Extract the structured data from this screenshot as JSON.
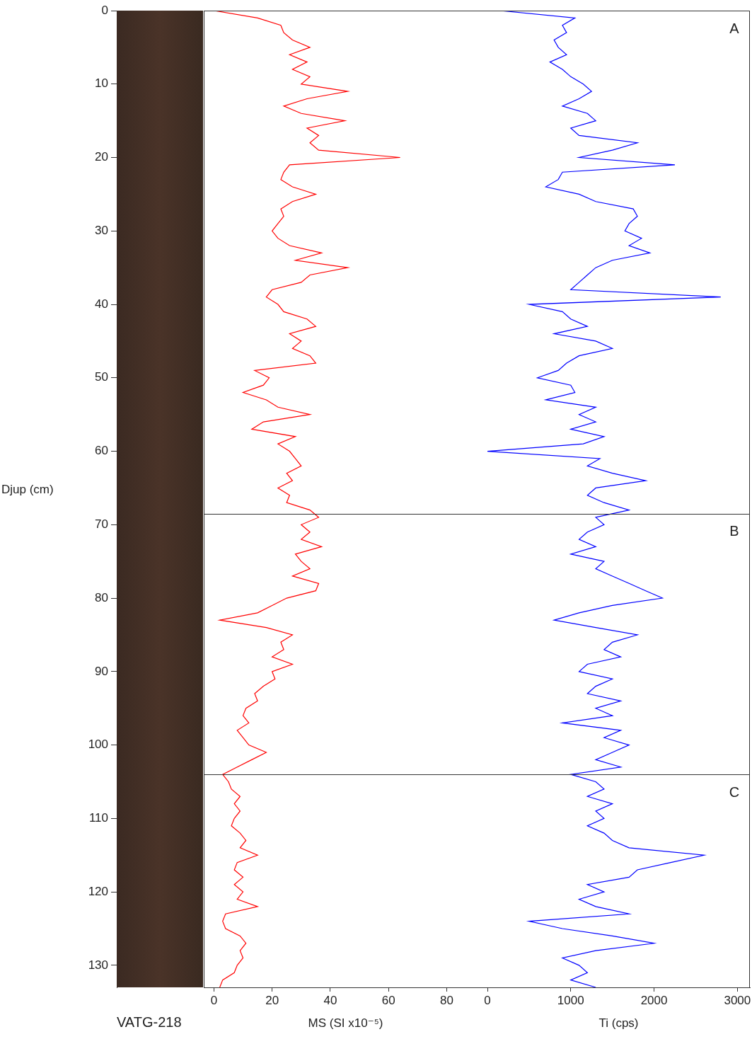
{
  "chart_data": {
    "type": "line",
    "title": "VATG-218",
    "y_label": "Djup (cm)",
    "ylim": [
      0,
      133
    ],
    "yticks": [
      0,
      10,
      20,
      30,
      40,
      50,
      60,
      70,
      80,
      90,
      100,
      110,
      120,
      130
    ],
    "grid": false,
    "depth": [
      0,
      1,
      2,
      3,
      4,
      5,
      6,
      7,
      8,
      9,
      10,
      11,
      12,
      13,
      14,
      15,
      16,
      17,
      18,
      19,
      20,
      21,
      22,
      23,
      24,
      25,
      26,
      27,
      28,
      29,
      30,
      31,
      32,
      33,
      34,
      35,
      36,
      37,
      38,
      39,
      40,
      41,
      42,
      43,
      44,
      45,
      46,
      47,
      48,
      49,
      50,
      51,
      52,
      53,
      54,
      55,
      56,
      57,
      58,
      59,
      60,
      61,
      62,
      63,
      64,
      65,
      66,
      67,
      68,
      69,
      70,
      71,
      72,
      73,
      74,
      75,
      76,
      77,
      78,
      79,
      80,
      81,
      82,
      83,
      84,
      85,
      86,
      87,
      88,
      89,
      90,
      91,
      92,
      93,
      94,
      95,
      96,
      97,
      98,
      99,
      100,
      101,
      102,
      103,
      104,
      105,
      106,
      107,
      108,
      109,
      110,
      111,
      112,
      113,
      114,
      115,
      116,
      117,
      118,
      119,
      120,
      121,
      122,
      123,
      124,
      125,
      126,
      127,
      128,
      129,
      130,
      131,
      132,
      133
    ],
    "panels": [
      {
        "x_label": "MS (SI x10⁻⁵)",
        "xlim": [
          -3.5,
          94
        ],
        "xticks": [
          0,
          20,
          40,
          60,
          80
        ],
        "series": [
          {
            "color": "#ff0000",
            "values": [
              0,
              15,
              23,
              24,
              27,
              33,
              26,
              32,
              27,
              33,
              30,
              46,
              32,
              24,
              30,
              45,
              32,
              36,
              33,
              36,
              64,
              26,
              24,
              23,
              27,
              35,
              27,
              23,
              24,
              22,
              20,
              22,
              26,
              37,
              28,
              46,
              33,
              30,
              20,
              18,
              22,
              24,
              32,
              35,
              26,
              30,
              27,
              33,
              35,
              14,
              19,
              17,
              10,
              18,
              22,
              33,
              17,
              13,
              28,
              22,
              26,
              28,
              30,
              25,
              27,
              22,
              26,
              25,
              33,
              36,
              30,
              33,
              30,
              37,
              28,
              30,
              33,
              27,
              36,
              35,
              25,
              20,
              15,
              2,
              18,
              27,
              23,
              24,
              20,
              27,
              20,
              21,
              17,
              14,
              15,
              11,
              10,
              12,
              8,
              10,
              12,
              18,
              13,
              8,
              3,
              5,
              6,
              9,
              7,
              9,
              7,
              6,
              9,
              11,
              9,
              15,
              8,
              7,
              10,
              7,
              10,
              8,
              15,
              4,
              3,
              4,
              9,
              11,
              9,
              10,
              8,
              7,
              3,
              2
            ]
          }
        ]
      },
      {
        "x_label": "Ti (cps)",
        "xlim": [
          0,
          3150
        ],
        "xticks": [
          0,
          1000,
          2000,
          3000
        ],
        "series": [
          {
            "color": "#0000ff",
            "values": [
              150,
              1050,
              900,
              950,
              800,
              850,
              950,
              750,
              900,
              1000,
              1150,
              1250,
              1100,
              900,
              1200,
              1300,
              1000,
              1100,
              1800,
              1500,
              1100,
              2250,
              900,
              850,
              700,
              1100,
              1300,
              1750,
              1800,
              1700,
              1650,
              1850,
              1700,
              1950,
              1500,
              1300,
              1200,
              1100,
              1000,
              2800,
              500,
              900,
              1000,
              1200,
              800,
              1300,
              1500,
              1100,
              950,
              850,
              600,
              1000,
              1050,
              700,
              1300,
              1100,
              1300,
              1000,
              1400,
              1150,
              0,
              1350,
              1200,
              1500,
              1900,
              1300,
              1200,
              1400,
              1700,
              1300,
              1400,
              1200,
              1100,
              1300,
              1000,
              1400,
              1300,
              1500,
              1700,
              1900,
              2100,
              1500,
              1100,
              800,
              1300,
              1800,
              1500,
              1400,
              1600,
              1200,
              1100,
              1500,
              1300,
              1200,
              1600,
              1300,
              1500,
              900,
              1600,
              1400,
              1700,
              1500,
              1300,
              1600,
              1000,
              1300,
              1400,
              1200,
              1500,
              1300,
              1400,
              1200,
              1400,
              1500,
              1700,
              2600,
              2200,
              1800,
              1700,
              1200,
              1400,
              1100,
              1300,
              1700,
              500,
              900,
              1500,
              2000,
              1300,
              900,
              1100,
              1200,
              1000,
              1300
            ]
          }
        ]
      }
    ],
    "zones": [
      {
        "label": "A",
        "top": 0,
        "bottom": 68.5
      },
      {
        "label": "B",
        "top": 68.5,
        "bottom": 104
      },
      {
        "label": "C",
        "top": 104,
        "bottom": 133
      }
    ]
  }
}
